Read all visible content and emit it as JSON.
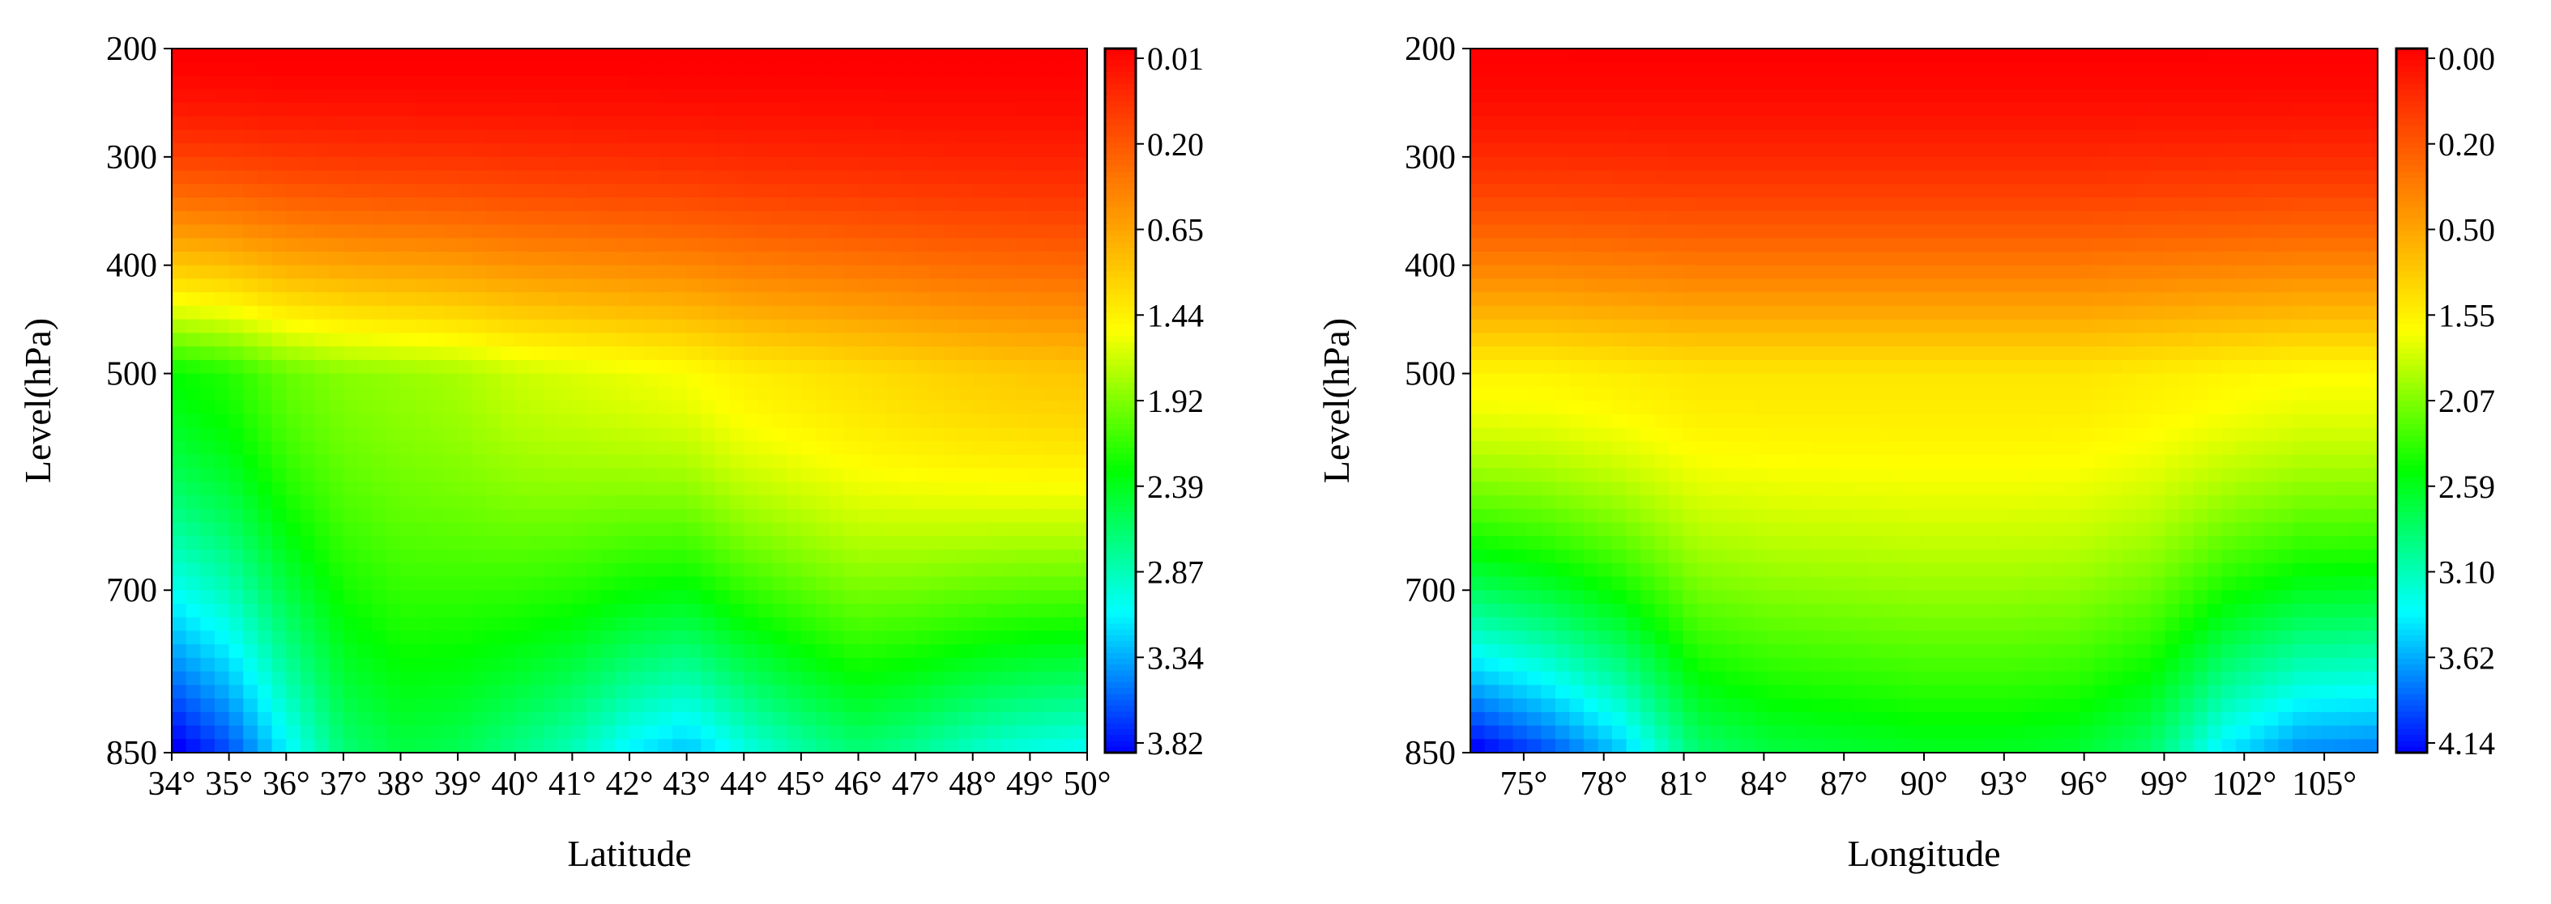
{
  "chart_data": [
    {
      "type": "heatmap",
      "title": "",
      "xlabel": "Latitude",
      "ylabel": "Level(hPa)",
      "x_ticks": [
        "34°",
        "35°",
        "36°",
        "37°",
        "38°",
        "39°",
        "40°",
        "41°",
        "42°",
        "43°",
        "44°",
        "45°",
        "46°",
        "47°",
        "48°",
        "49°",
        "50°"
      ],
      "x_values": [
        34,
        35,
        36,
        37,
        38,
        39,
        40,
        41,
        42,
        43,
        44,
        45,
        46,
        47,
        48,
        49,
        50
      ],
      "xlim": [
        34,
        50
      ],
      "y_ticks": [
        "200",
        "300",
        "400",
        "500",
        "700",
        "850"
      ],
      "y_values": [
        200,
        300,
        400,
        500,
        700,
        850
      ],
      "ylim": [
        850,
        200
      ],
      "colorbar": {
        "ticks": [
          "0.01",
          "0.20",
          "0.65",
          "1.44",
          "1.92",
          "2.39",
          "2.87",
          "3.34",
          "3.82"
        ],
        "range": [
          0.01,
          3.82
        ],
        "colors": [
          "#ff0000",
          "#ff8000",
          "#ffff00",
          "#00ff00",
          "#00ffff",
          "#0000ff"
        ]
      },
      "profile_500": [
        2.3,
        2.2,
        2.0,
        1.9,
        1.85,
        1.8,
        1.7,
        1.65,
        1.6,
        1.55,
        1.45,
        1.4,
        1.35,
        1.3,
        1.25,
        1.22,
        1.2
      ],
      "profile_850": [
        3.9,
        3.6,
        3.1,
        2.65,
        2.5,
        2.55,
        2.7,
        2.85,
        3.1,
        3.25,
        3.0,
        2.8,
        2.65,
        2.75,
        2.9,
        3.0,
        3.05
      ]
    },
    {
      "type": "heatmap",
      "title": "",
      "xlabel": "Longitude",
      "ylabel": "Level(hPa)",
      "x_ticks": [
        "75°",
        "78°",
        "81°",
        "84°",
        "87°",
        "90°",
        "93°",
        "96°",
        "99°",
        "102°",
        "105°"
      ],
      "x_values": [
        75,
        78,
        81,
        84,
        87,
        90,
        93,
        96,
        99,
        102,
        105
      ],
      "xlim": [
        73,
        107
      ],
      "y_ticks": [
        "200",
        "300",
        "400",
        "500",
        "700",
        "850"
      ],
      "y_values": [
        200,
        300,
        400,
        500,
        700,
        850
      ],
      "ylim": [
        850,
        200
      ],
      "colorbar": {
        "ticks": [
          "0.00",
          "0.20",
          "0.50",
          "1.55",
          "2.07",
          "2.59",
          "3.10",
          "3.62",
          "4.14"
        ],
        "range": [
          0.0,
          4.14
        ],
        "colors": [
          "#ff0000",
          "#ff8000",
          "#ffff00",
          "#00ff00",
          "#00ffff",
          "#0000ff"
        ]
      },
      "profile_500": [
        1.6,
        1.6,
        1.55,
        1.5,
        1.5,
        1.5,
        1.5,
        1.5,
        1.5,
        1.55,
        1.6,
        1.65,
        1.65
      ],
      "profile_850": [
        4.2,
        3.9,
        3.5,
        2.85,
        2.7,
        2.65,
        2.6,
        2.6,
        2.65,
        2.85,
        3.4,
        3.7,
        3.75
      ]
    }
  ]
}
